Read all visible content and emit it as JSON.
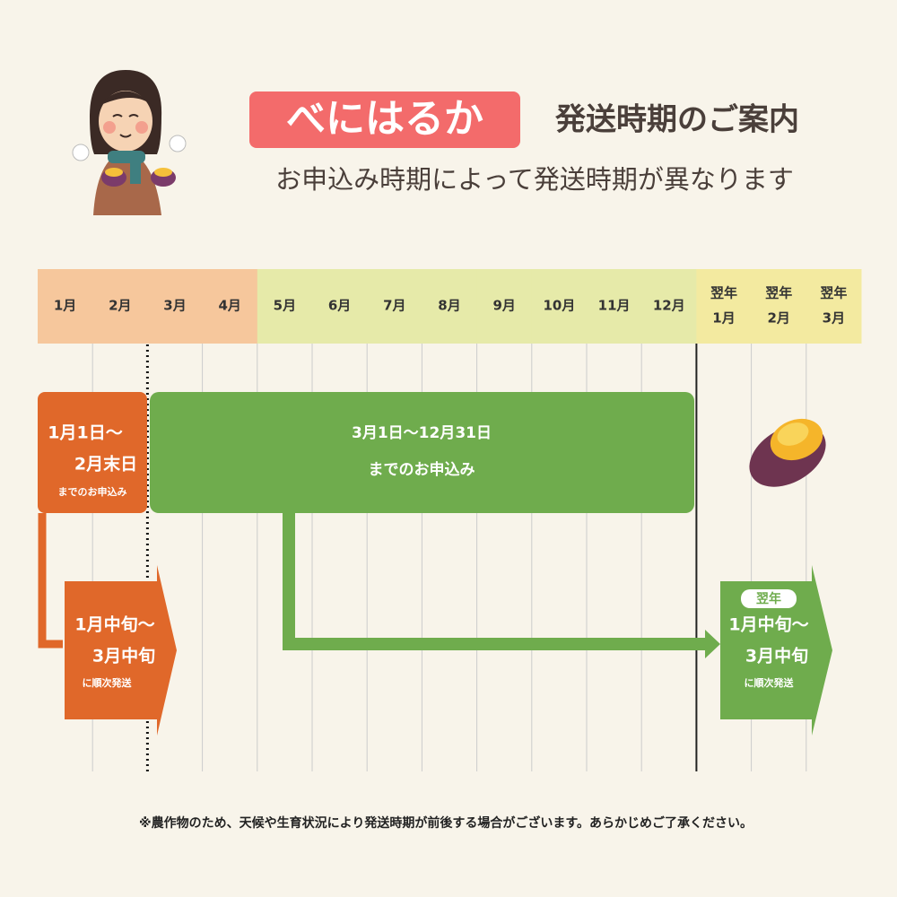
{
  "header": {
    "badge": "べにはるか",
    "title": "発送時期のご案内",
    "subtitle": "お申込み時期によって発送時期が異なります"
  },
  "calendar": {
    "months": [
      "1月",
      "2月",
      "3月",
      "4月",
      "5月",
      "6月",
      "7月",
      "8月",
      "9月",
      "10月",
      "11月",
      "12月"
    ],
    "next_year_months": [
      {
        "prefix": "翌年",
        "month": "1月"
      },
      {
        "prefix": "翌年",
        "month": "2月"
      },
      {
        "prefix": "翌年",
        "month": "3月"
      }
    ]
  },
  "early_order": {
    "period_start": "1月1日～",
    "period_end": "2月末日",
    "note": "までのお申込み",
    "shipping_start": "1月中旬～",
    "shipping_end": "3月中旬",
    "shipping_note": "に順次発送"
  },
  "late_order": {
    "period": "3月1日～12月31日",
    "note": "までのお申込み",
    "shipping_badge": "翌年",
    "shipping_start": "1月中旬～",
    "shipping_end": "3月中旬",
    "shipping_note": "に順次発送"
  },
  "footnote": "※農作物のため、天候や生育状況により発送時期が前後する場合がございます。あらかじめご了承ください。"
}
